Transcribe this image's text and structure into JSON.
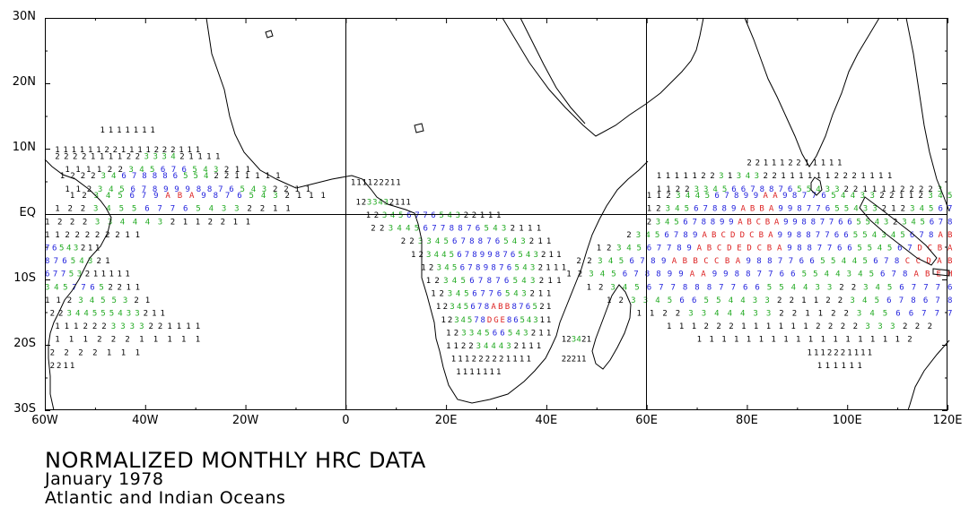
{
  "map": {
    "y_axis_labels": [
      "30N",
      "20N",
      "10N",
      "EQ",
      "10S",
      "20S",
      "30S"
    ],
    "x_axis_labels": [
      "60W",
      "40W",
      "20W",
      "0",
      "20E",
      "40E",
      "60E",
      "80E",
      "100E",
      "120E"
    ],
    "lat_range": [
      -30,
      30
    ],
    "lon_range": [
      -60,
      120
    ],
    "grid_lines": {
      "equator": true,
      "prime_meridian": true,
      "meridian_60E": true
    },
    "colors": {
      "frame": "#000000",
      "coast": "#000000",
      "value_low": "#000000",
      "value_mid": "#22aa22",
      "value_high": "#2222dd",
      "value_max": "#dd2222"
    },
    "hrc_value_bands": [
      {
        "lat": 13,
        "lon_start": -49,
        "lon_end": -39,
        "values": "1111111"
      },
      {
        "lat": 10,
        "lon_start": -58,
        "lon_end": -30,
        "values": "111111221111222111"
      },
      {
        "lat": 9,
        "lon_start": -58,
        "lon_end": -26,
        "values": "2222111122333421111"
      },
      {
        "lat": 7,
        "lon_start": -56,
        "lon_end": -20,
        "values": "111122345676543211"
      },
      {
        "lat": 6,
        "lon_start": -57,
        "lon_end": -14,
        "values": "1222346788865542211111"
      },
      {
        "lat": 4,
        "lon_start": -56,
        "lon_end": -8,
        "values": "11234567899988765432211"
      },
      {
        "lat": 3,
        "lon_start": -55,
        "lon_end": -5,
        "values": "12345679ABA98765432111"
      },
      {
        "lat": 1,
        "lon_start": -58,
        "lon_end": -12,
        "values": "1223455677654332211"
      },
      {
        "lat": -1,
        "lon_start": -60,
        "lon_end": -20,
        "values": "12223344432112211"
      },
      {
        "lat": -3,
        "lon_start": -60,
        "lon_end": -42,
        "values": "1122222211"
      },
      {
        "lat": -5,
        "lon_start": -60,
        "lon_end": -50,
        "values": "76543211"
      },
      {
        "lat": -7,
        "lon_start": -60,
        "lon_end": -48,
        "values": "87654321"
      },
      {
        "lat": -9,
        "lon_start": -60,
        "lon_end": -44,
        "values": "67753211111"
      },
      {
        "lat": -11,
        "lon_start": -60,
        "lon_end": -42,
        "values": "34577652211"
      },
      {
        "lat": -13,
        "lon_start": -60,
        "lon_end": -40,
        "values": "1123455321"
      },
      {
        "lat": -15,
        "lon_start": -59,
        "lon_end": -37,
        "values": "22344555433211"
      },
      {
        "lat": -17,
        "lon_start": -58,
        "lon_end": -30,
        "values": "1112223333221111"
      },
      {
        "lat": -19,
        "lon_start": -58,
        "lon_end": -30,
        "values": "11122211111"
      },
      {
        "lat": -21,
        "lon_start": -59,
        "lon_end": -42,
        "values": "2222111"
      },
      {
        "lat": -23,
        "lon_start": -59,
        "lon_end": -55,
        "values": "2211"
      },
      {
        "lat": 5,
        "lon_start": 1,
        "lon_end": 10,
        "values": "111122211"
      },
      {
        "lat": 2,
        "lon_start": 2,
        "lon_end": 12,
        "values": "1233432111"
      },
      {
        "lat": 0,
        "lon_start": 4,
        "lon_end": 30,
        "values": "12345677654322111"
      },
      {
        "lat": -2,
        "lon_start": 5,
        "lon_end": 38,
        "values": "22344567788765432111"
      },
      {
        "lat": -4,
        "lon_start": 11,
        "lon_end": 40,
        "values": "223345678876543211"
      },
      {
        "lat": -6,
        "lon_start": 13,
        "lon_end": 42,
        "values": "12344567899876543211"
      },
      {
        "lat": -8,
        "lon_start": 15,
        "lon_end": 43,
        "values": "1234567898765432111"
      },
      {
        "lat": -10,
        "lon_start": 16,
        "lon_end": 42,
        "values": "1234567876543211"
      },
      {
        "lat": -12,
        "lon_start": 17,
        "lon_end": 40,
        "values": "123456776543211"
      },
      {
        "lat": -14,
        "lon_start": 18,
        "lon_end": 40,
        "values": "12345678ABB876521"
      },
      {
        "lat": -16,
        "lon_start": 19,
        "lon_end": 40,
        "values": "1234578DGE8654311"
      },
      {
        "lat": -18,
        "lon_start": 20,
        "lon_end": 40,
        "values": "12334566543211"
      },
      {
        "lat": -20,
        "lon_start": 20,
        "lon_end": 38,
        "values": "1122344432111"
      },
      {
        "lat": -22,
        "lon_start": 21,
        "lon_end": 36,
        "values": "111222221111"
      },
      {
        "lat": -24,
        "lon_start": 22,
        "lon_end": 30,
        "values": "1111111"
      },
      {
        "lat": -19,
        "lon_start": 43,
        "lon_end": 48,
        "values": "123421"
      },
      {
        "lat": -22,
        "lon_start": 43,
        "lon_end": 47,
        "values": "22211"
      },
      {
        "lat": 8,
        "lon_start": 80,
        "lon_end": 98,
        "values": "221112211111"
      },
      {
        "lat": 6,
        "lon_start": 62,
        "lon_end": 108,
        "values": "111112231343221111112221111"
      },
      {
        "lat": 4,
        "lon_start": 62,
        "lon_end": 118,
        "values": "1122334566788765543322111122223"
      },
      {
        "lat": 3,
        "lon_start": 60,
        "lon_end": 120,
        "values": "112344567899AA987765443322112345"
      },
      {
        "lat": 1,
        "lon_start": 60,
        "lon_end": 120,
        "values": "1234567889ABBA9987765543321234567"
      },
      {
        "lat": -1,
        "lon_start": 60,
        "lon_end": 120,
        "values": "2345678899ABCBA9988776655432345678"
      },
      {
        "lat": -3,
        "lon_start": 56,
        "lon_end": 120,
        "values": "23456789ABCDDCBA99887766554345678AB"
      },
      {
        "lat": -5,
        "lon_start": 50,
        "lon_end": 120,
        "values": "1234567789ABCDEDCBA9887766554567DCBA"
      },
      {
        "lat": -7,
        "lon_start": 46,
        "lon_end": 120,
        "values": "223456789ABBCCBA988776655445678CCDAB"
      },
      {
        "lat": -9,
        "lon_start": 44,
        "lon_end": 120,
        "values": "12345678899AA998877665544345678ABEH"
      },
      {
        "lat": -11,
        "lon_start": 48,
        "lon_end": 120,
        "values": "1234567788877665544332234567776"
      },
      {
        "lat": -13,
        "lon_start": 52,
        "lon_end": 120,
        "values": "12334566554433221122345678678"
      },
      {
        "lat": -15,
        "lon_start": 58,
        "lon_end": 120,
        "values": "1122334443322112234566777"
      },
      {
        "lat": -17,
        "lon_start": 64,
        "lon_end": 116,
        "values": "1112221111112222333222"
      },
      {
        "lat": -19,
        "lon_start": 70,
        "lon_end": 112,
        "values": "111111111111111112"
      },
      {
        "lat": -21,
        "lon_start": 92,
        "lon_end": 104,
        "values": "1112221111"
      },
      {
        "lat": -23,
        "lon_start": 94,
        "lon_end": 102,
        "values": "111111"
      }
    ]
  },
  "caption": {
    "title": "NORMALIZED MONTHLY HRC DATA",
    "date": "January 1978",
    "region": "Atlantic and Indian Oceans"
  }
}
